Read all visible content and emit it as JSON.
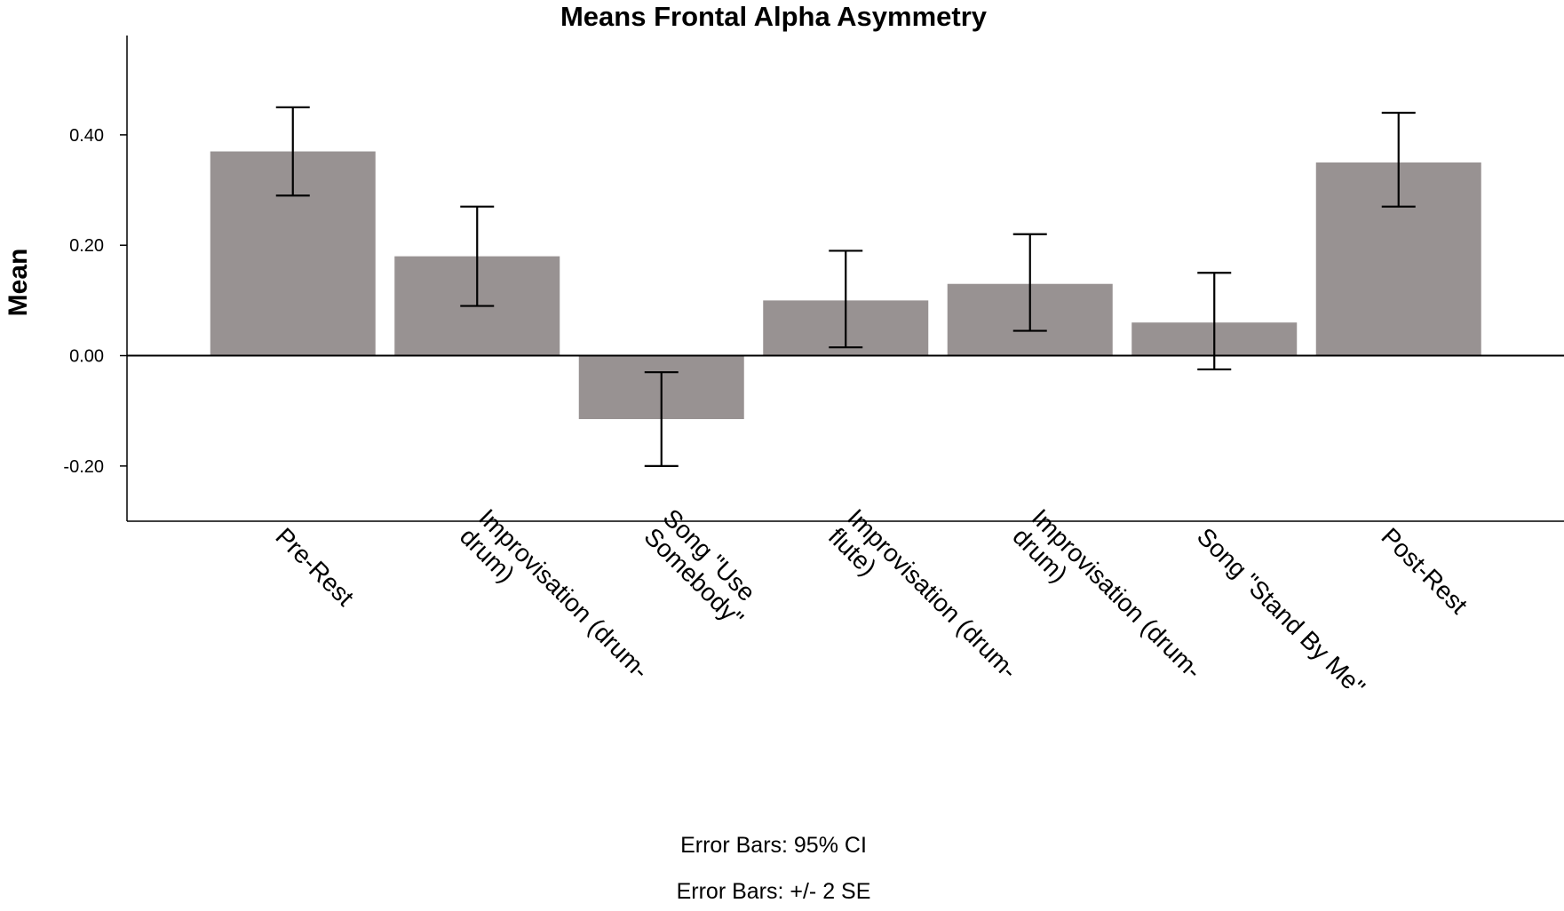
{
  "chart_data": {
    "type": "bar",
    "title": "Means Frontal Alpha Asymmetry",
    "xlabel": "",
    "ylabel": "Mean",
    "ylim": [
      -0.3,
      0.58
    ],
    "yticks": [
      -0.2,
      0.0,
      0.2,
      0.4
    ],
    "ytick_labels": [
      "-0.20",
      "0.00",
      "0.20",
      "0.40"
    ],
    "bar_color": "#989292",
    "categories": [
      [
        "Pre-Rest"
      ],
      [
        "Improvisation (drum-",
        "drum)"
      ],
      [
        "Song \"Use",
        "Somebody\""
      ],
      [
        "Improvisation (drum-",
        "flute)"
      ],
      [
        "Improvisation (drum-",
        "drum)"
      ],
      [
        "Song \"Stand By Me\""
      ],
      [
        "Post-Rest"
      ]
    ],
    "values": [
      0.37,
      0.18,
      -0.115,
      0.1,
      0.13,
      0.06,
      0.35
    ],
    "error_low": [
      0.29,
      0.09,
      -0.2,
      0.015,
      0.045,
      -0.025,
      0.27
    ],
    "error_high": [
      0.45,
      0.27,
      -0.03,
      0.19,
      0.22,
      0.15,
      0.44
    ],
    "footnotes": [
      "Error Bars: 95% CI",
      "Error Bars: +/- 2 SE"
    ]
  }
}
